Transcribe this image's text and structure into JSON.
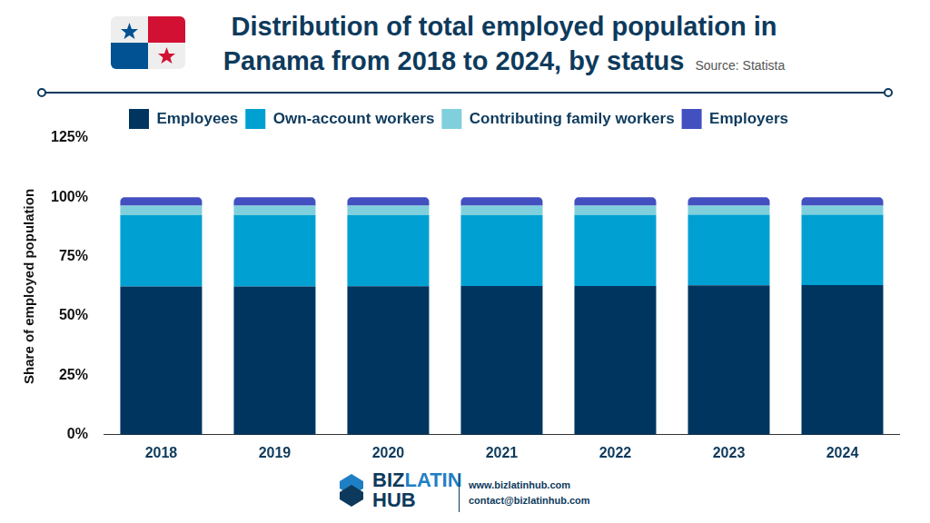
{
  "chart_data": {
    "type": "bar",
    "title": [
      "Distribution of total employed population in",
      "Panama from 2018 to 2024, by status"
    ],
    "source": "Source:  Statista",
    "ylabel": "Share of employed population",
    "categories": [
      "2018",
      "2019",
      "2020",
      "2021",
      "2022",
      "2023",
      "2024"
    ],
    "series": [
      {
        "name": "Employees",
        "color": "#003560",
        "values": [
          62.5,
          62.5,
          62.6,
          62.7,
          62.7,
          62.9,
          63.0
        ]
      },
      {
        "name": "Own-account workers",
        "color": "#00a0d2",
        "values": [
          30.0,
          30.0,
          29.9,
          29.8,
          29.9,
          29.8,
          29.7
        ]
      },
      {
        "name": "Contributing family workers",
        "color": "#7fd0dc",
        "values": [
          4.0,
          4.0,
          4.0,
          4.0,
          3.9,
          3.8,
          3.8
        ]
      },
      {
        "name": "Employers",
        "color": "#4350c0",
        "values": [
          3.5,
          3.5,
          3.5,
          3.5,
          3.5,
          3.5,
          3.5
        ]
      }
    ],
    "ylim": [
      0,
      125
    ],
    "yticks": [
      {
        "value": 0,
        "label": "0%"
      },
      {
        "value": 25,
        "label": "25%"
      },
      {
        "value": 50,
        "label": "50%"
      },
      {
        "value": 75,
        "label": "75%"
      },
      {
        "value": 100,
        "label": "100%"
      },
      {
        "value": 125,
        "label": "125%"
      }
    ],
    "stacked": true,
    "grid": false,
    "legend": "top"
  },
  "footer": {
    "logo": [
      "BIZ",
      "LATIN",
      "HUB"
    ],
    "website": "www.bizlatinhub.com",
    "email": "contact@bizlatinhub.com"
  }
}
